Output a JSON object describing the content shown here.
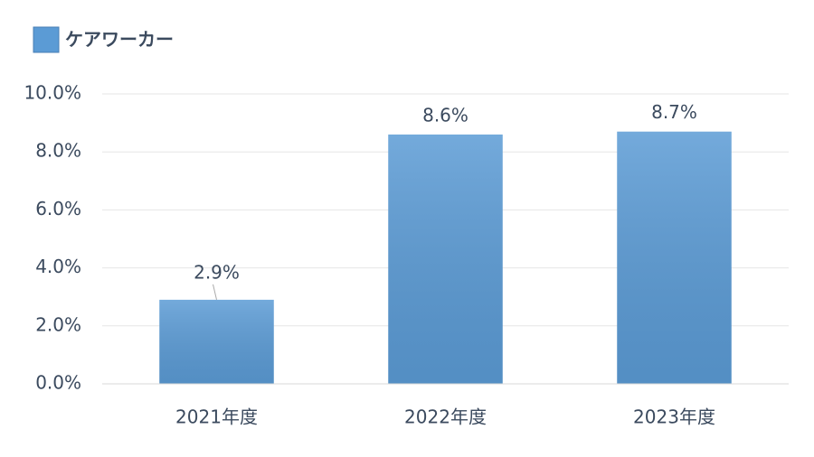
{
  "chart_data": {
    "type": "bar",
    "legend": "top-left",
    "series": [
      {
        "name": "ケアワーカー",
        "color": "#5b9bd5",
        "values": [
          2.9,
          8.6,
          8.7
        ],
        "value_labels": [
          "2.9%",
          "8.6%",
          "8.7%"
        ]
      }
    ],
    "categories": [
      "2021年度",
      "2022年度",
      "2023年度"
    ],
    "ylim": [
      0,
      10
    ],
    "yticks": [
      {
        "value": 0,
        "label": "0.0%"
      },
      {
        "value": 2,
        "label": "2.0%"
      },
      {
        "value": 4,
        "label": "4.0%"
      },
      {
        "value": 6,
        "label": "6.0%"
      },
      {
        "value": 8,
        "label": "8.0%"
      },
      {
        "value": 10,
        "label": "10.0%"
      }
    ],
    "grid": true
  }
}
